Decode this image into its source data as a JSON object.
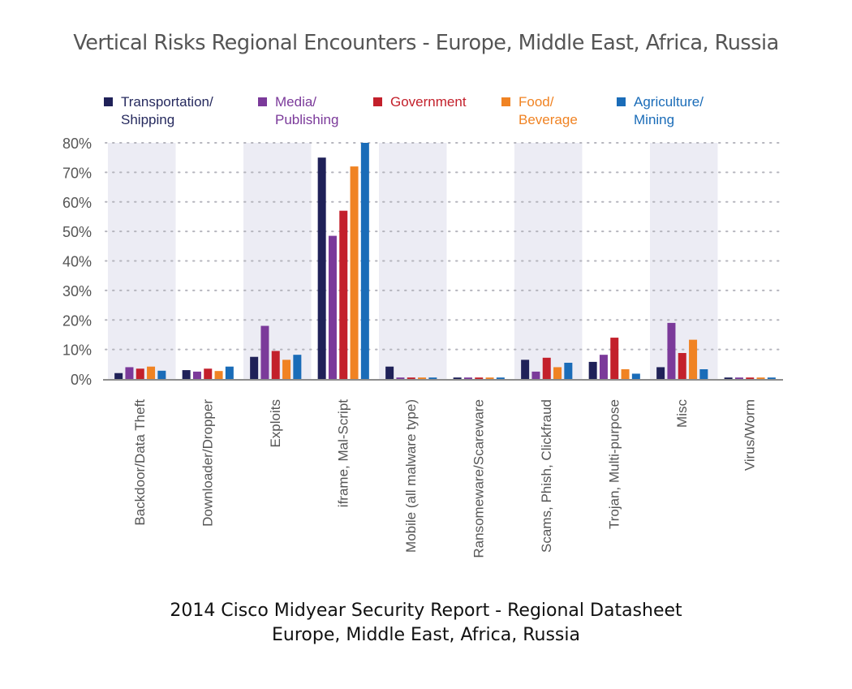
{
  "chart_data": {
    "type": "bar",
    "title": "Vertical Risks Regional Encounters - Europe, Middle East, Africa, Russia",
    "xlabel": "",
    "ylabel": "",
    "ylim": [
      0,
      80
    ],
    "yticks": [
      0,
      10,
      20,
      30,
      40,
      50,
      60,
      70,
      80
    ],
    "ytick_format": "{v}%",
    "grid": true,
    "legend_position": "top",
    "categories": [
      "Backdoor/Data Theft",
      "Downloader/Dropper",
      "Exploits",
      "iframe, Mal-Script",
      "Mobile (all malware type)",
      "Ransomeware/Scareware",
      "Scams, Phish, Clickfraud",
      "Trojan, Multi-purpose",
      "Misc",
      "Virus/Worm"
    ],
    "series": [
      {
        "name": "Transportation/\nShipping",
        "color": "#1f2158",
        "values": [
          2.0,
          3.0,
          7.5,
          75.0,
          4.2,
          0.5,
          6.5,
          5.8,
          4.0,
          0.5
        ]
      },
      {
        "name": "Media/\nPublishing",
        "color": "#7b3a9a",
        "values": [
          4.0,
          2.5,
          18.0,
          48.5,
          0.5,
          0.5,
          2.5,
          8.2,
          19.0,
          0.5
        ]
      },
      {
        "name": "Government",
        "color": "#c3202b",
        "values": [
          3.5,
          3.5,
          9.5,
          57.0,
          0.5,
          0.5,
          7.2,
          14.0,
          8.8,
          0.5
        ]
      },
      {
        "name": "Food/\nBeverage",
        "color": "#f08323",
        "values": [
          4.2,
          2.7,
          6.5,
          72.0,
          0.5,
          0.5,
          4.0,
          3.3,
          13.3,
          0.5
        ]
      },
      {
        "name": "Agriculture/\nMining",
        "color": "#1a6cb8",
        "values": [
          2.8,
          4.2,
          8.2,
          80.0,
          0.5,
          0.5,
          5.5,
          1.8,
          3.3,
          0.5
        ]
      }
    ],
    "shaded_band_color": "#ececf4"
  },
  "footer": {
    "line1": "2014 Cisco Midyear Security Report - Regional Datasheet",
    "line2": "Europe, Middle East, Africa, Russia"
  }
}
